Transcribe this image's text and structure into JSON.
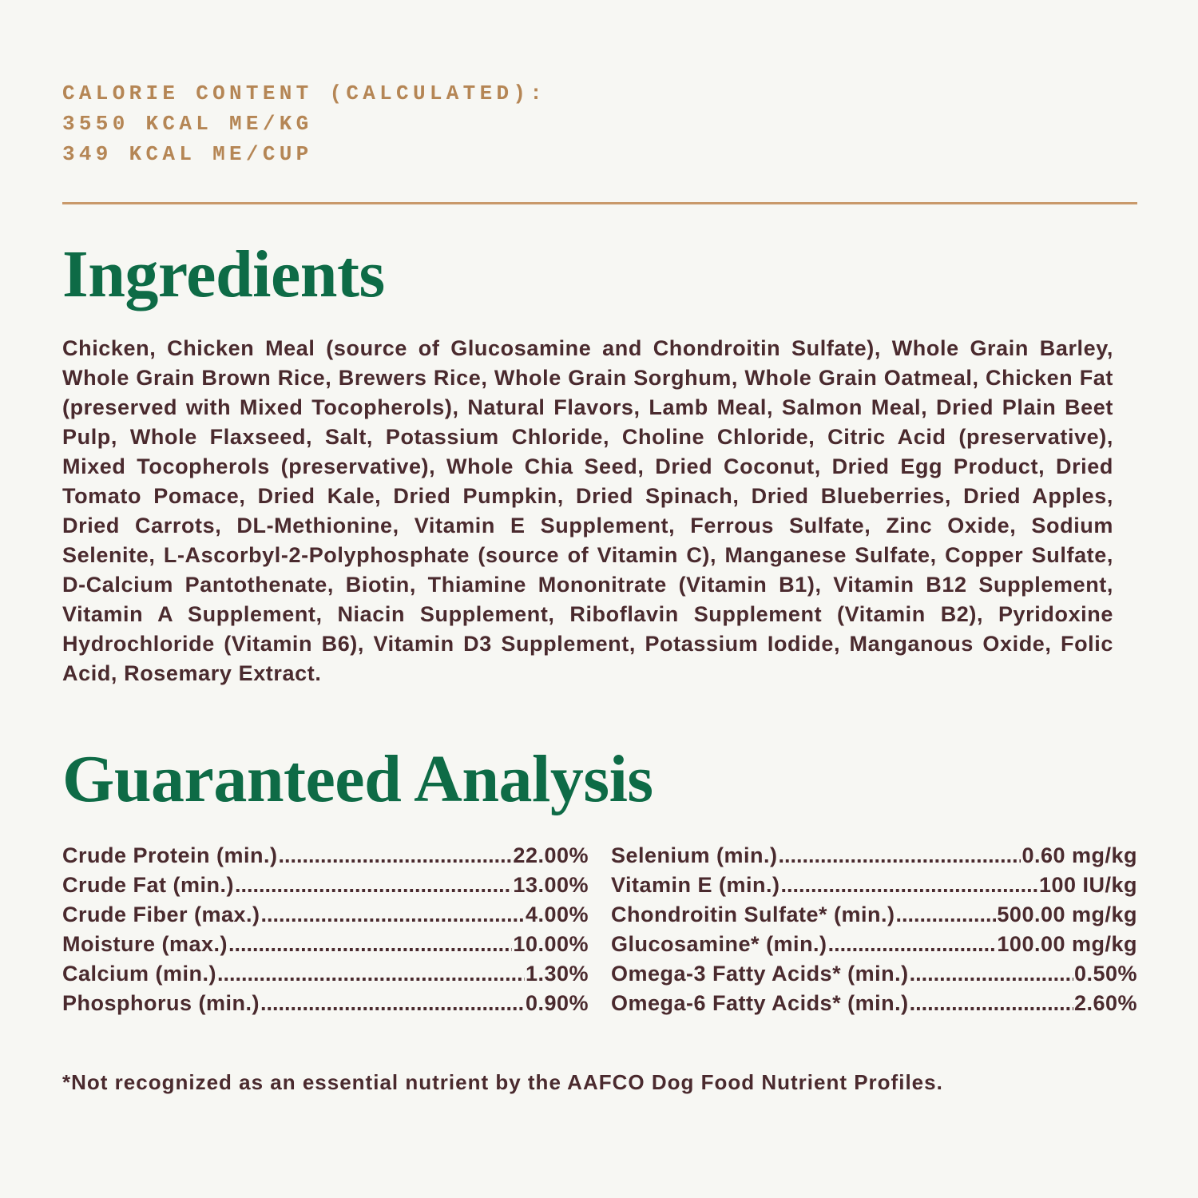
{
  "calorie": {
    "heading": "CALORIE CONTENT (CALCULATED):",
    "per_kg": "3550 KCAL ME/KG",
    "per_cup": "349 KCAL ME/CUP"
  },
  "colors": {
    "background": "#f7f7f3",
    "accent_tan": "#b58655",
    "heading_green": "#0e6b46",
    "body_text": "#4a2a2e"
  },
  "ingredients": {
    "title": "Ingredients",
    "text": "Chicken, Chicken Meal (source of Glucosamine and Chondroitin Sulfate), Whole Grain Barley, Whole Grain Brown Rice, Brewers Rice, Whole Grain Sorghum, Whole Grain Oatmeal, Chicken Fat (preserved with Mixed Tocopherols), Natural Flavors, Lamb Meal, Salmon Meal, Dried Plain Beet Pulp, Whole Flaxseed, Salt, Potassium Chloride, Choline Chloride, Citric Acid (preservative), Mixed Tocopherols (preservative), Whole Chia Seed, Dried Coconut, Dried Egg Product, Dried Tomato Pomace, Dried Kale, Dried Pumpkin, Dried Spinach, Dried Blueberries, Dried Apples, Dried Carrots, DL-Methionine, Vitamin E Supplement, Ferrous Sulfate, Zinc Oxide, Sodium Selenite, L-Ascorbyl-2-Polyphosphate (source of Vitamin C), Manganese Sulfate, Copper Sulfate, D-Calcium Pantothenate, Biotin, Thiamine Mononitrate (Vitamin B1), Vitamin B12 Supplement, Vitamin A Supplement, Niacin Supplement, Riboflavin Supplement (Vitamin B2), Pyridoxine Hydrochloride (Vitamin B6), Vitamin D3 Supplement, Potassium Iodide, Manganous Oxide, Folic Acid, Rosemary Extract."
  },
  "analysis": {
    "title": "Guaranteed Analysis",
    "left": [
      {
        "label": "Crude Protein (min.)",
        "value": "22.00%"
      },
      {
        "label": "Crude Fat (min.)",
        "value": "13.00%"
      },
      {
        "label": "Crude Fiber (max.)",
        "value": "4.00%"
      },
      {
        "label": "Moisture  (max.)",
        "value": "10.00%"
      },
      {
        "label": "Calcium  (min.)",
        "value": "1.30%"
      },
      {
        "label": "Phosphorus  (min.)",
        "value": "0.90%"
      }
    ],
    "right": [
      {
        "label": "Selenium (min.)",
        "value": " 0.60 mg/kg"
      },
      {
        "label": "Vitamin E (min.)",
        "value": "100 IU/kg"
      },
      {
        "label": "Chondroitin Sulfate* (min.)",
        "value": "500.00 mg/kg"
      },
      {
        "label": "Glucosamine* (min.)",
        "value": "100.00 mg/kg"
      },
      {
        "label": "Omega-3 Fatty Acids* (min.)",
        "value": "0.50%"
      },
      {
        "label": "Omega-6 Fatty Acids* (min.)",
        "value": " 2.60%"
      }
    ]
  },
  "footnote": "*Not recognized as an essential nutrient by the AAFCO Dog Food Nutrient Profiles."
}
